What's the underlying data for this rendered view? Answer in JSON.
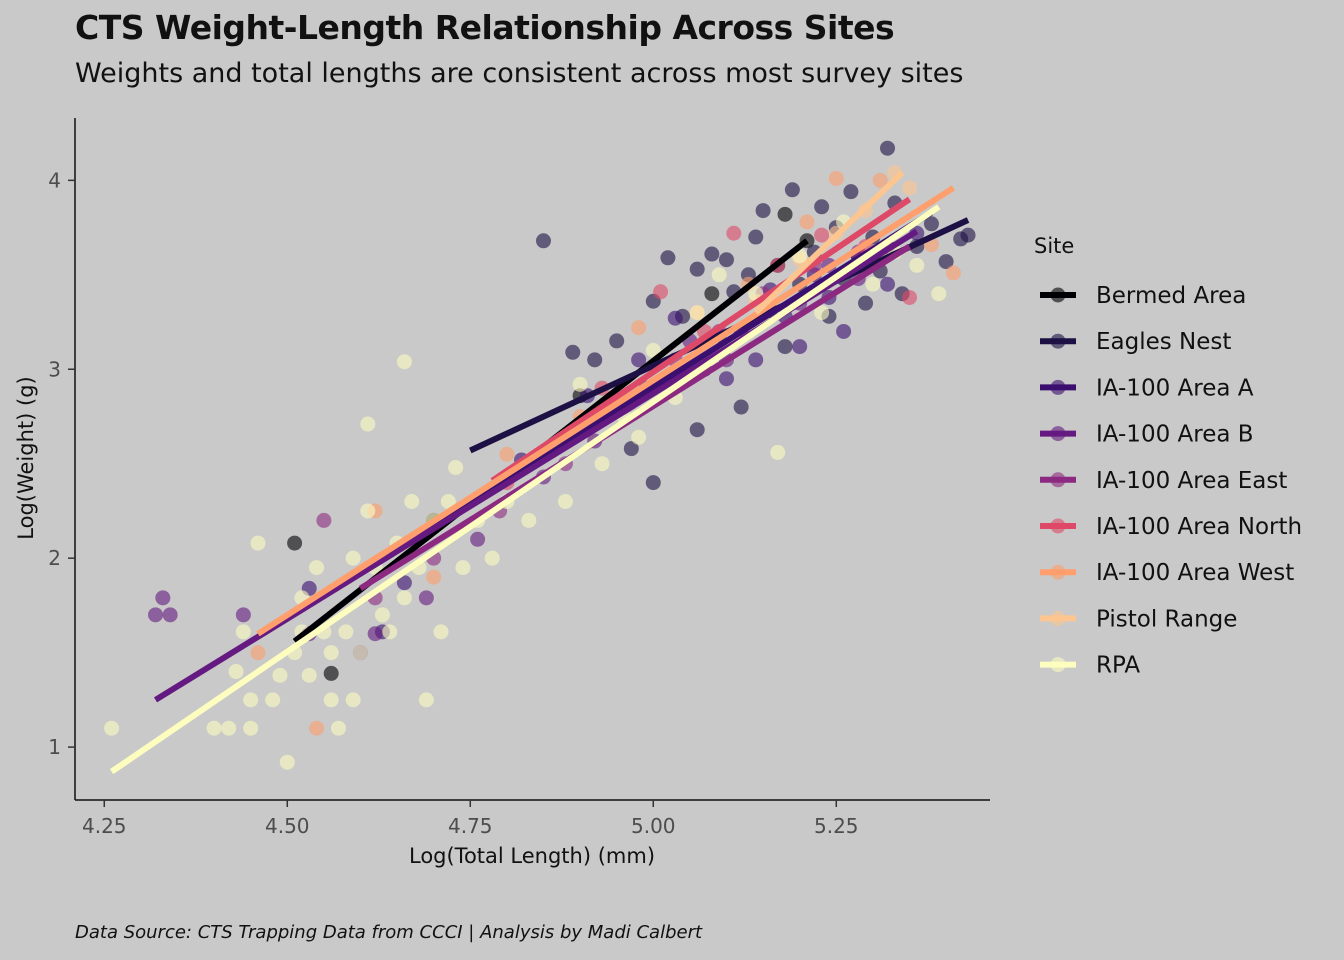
{
  "chart_data": {
    "type": "scatter",
    "title": "CTS Weight-Length Relationship Across Sites",
    "subtitle": "Weights and total lengths are consistent across most survey sites",
    "caption": "Data Source: CTS Trapping Data from CCCI | Analysis by Madi Calbert",
    "xlabel": "Log(Total Length) (mm)",
    "ylabel": "Log(Weight) (g)",
    "xlim": [
      4.21,
      5.46
    ],
    "ylim": [
      0.72,
      4.33
    ],
    "x_ticks": [
      "4.25",
      "4.50",
      "4.75",
      "5.00",
      "5.25"
    ],
    "x_tick_values": [
      4.25,
      4.5,
      4.75,
      5.0,
      5.25
    ],
    "y_ticks": [
      "1",
      "2",
      "3",
      "4"
    ],
    "y_tick_values": [
      1,
      2,
      3,
      4
    ],
    "grid": false,
    "legend": {
      "title": "Site",
      "position": "right"
    },
    "series": [
      {
        "name": "Bermed Area",
        "color": "#000004",
        "fit": [
          [
            4.51,
            1.56
          ],
          [
            5.21,
            3.68
          ]
        ],
        "points": [
          [
            4.51,
            2.08
          ],
          [
            4.56,
            1.39
          ],
          [
            4.7,
            2.2
          ],
          [
            4.9,
            2.86
          ],
          [
            5.08,
            3.4
          ],
          [
            5.18,
            3.82
          ],
          [
            5.21,
            3.68
          ]
        ]
      },
      {
        "name": "Eagles Nest",
        "color": "#1c1044",
        "fit": [
          [
            4.75,
            2.57
          ],
          [
            5.43,
            3.79
          ]
        ],
        "points": [
          [
            4.85,
            3.68
          ],
          [
            4.89,
            3.09
          ],
          [
            4.92,
            3.05
          ],
          [
            4.95,
            3.15
          ],
          [
            4.97,
            2.58
          ],
          [
            5.0,
            3.36
          ],
          [
            5.0,
            2.4
          ],
          [
            5.02,
            3.59
          ],
          [
            5.04,
            3.28
          ],
          [
            5.06,
            3.53
          ],
          [
            5.06,
            2.68
          ],
          [
            5.08,
            3.61
          ],
          [
            5.09,
            3.18
          ],
          [
            5.1,
            3.58
          ],
          [
            5.11,
            3.41
          ],
          [
            5.12,
            2.8
          ],
          [
            5.13,
            3.5
          ],
          [
            5.14,
            3.7
          ],
          [
            5.15,
            3.84
          ],
          [
            5.16,
            3.31
          ],
          [
            5.17,
            3.55
          ],
          [
            5.18,
            3.12
          ],
          [
            5.19,
            3.95
          ],
          [
            5.2,
            3.45
          ],
          [
            5.22,
            3.62
          ],
          [
            5.23,
            3.86
          ],
          [
            5.24,
            3.28
          ],
          [
            5.25,
            3.75
          ],
          [
            5.26,
            3.48
          ],
          [
            5.27,
            3.94
          ],
          [
            5.28,
            3.6
          ],
          [
            5.29,
            3.35
          ],
          [
            5.3,
            3.7
          ],
          [
            5.31,
            3.52
          ],
          [
            5.32,
            4.17
          ],
          [
            5.33,
            3.88
          ],
          [
            5.34,
            3.4
          ],
          [
            5.36,
            3.65
          ],
          [
            5.38,
            3.77
          ],
          [
            5.4,
            3.57
          ],
          [
            5.42,
            3.69
          ],
          [
            5.43,
            3.71
          ]
        ]
      },
      {
        "name": "IA-100 Area A",
        "color": "#3b0f70",
        "fit": [
          [
            4.64,
            2.03
          ],
          [
            5.38,
            3.83
          ]
        ],
        "points": [
          [
            4.53,
            1.84
          ],
          [
            4.6,
            1.5
          ],
          [
            4.63,
            1.61
          ],
          [
            4.66,
            1.87
          ],
          [
            4.82,
            2.52
          ],
          [
            4.91,
            2.86
          ],
          [
            4.98,
            3.05
          ],
          [
            5.03,
            3.27
          ],
          [
            5.07,
            3.0
          ],
          [
            5.1,
            2.95
          ],
          [
            5.12,
            3.2
          ],
          [
            5.14,
            3.05
          ],
          [
            5.16,
            3.42
          ],
          [
            5.18,
            3.28
          ],
          [
            5.2,
            3.12
          ],
          [
            5.22,
            3.5
          ],
          [
            5.24,
            3.38
          ],
          [
            5.26,
            3.2
          ],
          [
            5.28,
            3.6
          ],
          [
            5.32,
            3.45
          ],
          [
            5.36,
            3.72
          ]
        ]
      },
      {
        "name": "IA-100 Area B",
        "color": "#641a80",
        "fit": [
          [
            4.32,
            1.25
          ],
          [
            5.36,
            3.73
          ]
        ],
        "points": [
          [
            4.32,
            1.7
          ],
          [
            4.33,
            1.79
          ],
          [
            4.34,
            1.7
          ],
          [
            4.44,
            1.7
          ],
          [
            4.53,
            1.6
          ],
          [
            4.62,
            1.6
          ],
          [
            4.69,
            1.79
          ],
          [
            4.76,
            2.1
          ],
          [
            4.85,
            2.43
          ],
          [
            4.92,
            2.62
          ],
          [
            4.99,
            2.9
          ],
          [
            5.05,
            3.15
          ],
          [
            5.1,
            3.05
          ],
          [
            5.15,
            3.3
          ],
          [
            5.2,
            3.35
          ],
          [
            5.24,
            3.55
          ],
          [
            5.28,
            3.48
          ],
          [
            5.32,
            3.65
          ]
        ]
      },
      {
        "name": "IA-100 Area East",
        "color": "#8c2981",
        "fit": [
          [
            4.6,
            1.84
          ],
          [
            5.35,
            3.65
          ]
        ],
        "points": [
          [
            4.55,
            2.2
          ],
          [
            4.62,
            1.79
          ],
          [
            4.7,
            2.0
          ],
          [
            4.79,
            2.25
          ],
          [
            4.88,
            2.5
          ],
          [
            4.96,
            2.8
          ],
          [
            5.03,
            3.05
          ],
          [
            5.09,
            3.2
          ],
          [
            5.15,
            3.4
          ],
          [
            5.22,
            3.55
          ],
          [
            5.28,
            3.62
          ]
        ]
      },
      {
        "name": "IA-100 Area North",
        "color": "#de4968",
        "fit": [
          [
            4.78,
            2.41
          ],
          [
            5.35,
            3.9
          ]
        ],
        "points": [
          [
            4.8,
            2.4
          ],
          [
            4.87,
            2.62
          ],
          [
            4.93,
            2.9
          ],
          [
            5.01,
            3.41
          ],
          [
            5.07,
            3.2
          ],
          [
            5.11,
            3.72
          ],
          [
            5.17,
            3.55
          ],
          [
            5.23,
            3.71
          ],
          [
            5.29,
            3.65
          ],
          [
            5.35,
            3.38
          ]
        ]
      },
      {
        "name": "IA-100 Area West",
        "color": "#fe9f6d",
        "fit": [
          [
            4.46,
            1.6
          ],
          [
            5.41,
            3.96
          ]
        ],
        "points": [
          [
            4.46,
            1.5
          ],
          [
            4.54,
            1.1
          ],
          [
            4.62,
            2.25
          ],
          [
            4.7,
            1.9
          ],
          [
            4.8,
            2.55
          ],
          [
            4.9,
            2.75
          ],
          [
            4.98,
            3.22
          ],
          [
            5.06,
            3.3
          ],
          [
            5.13,
            3.45
          ],
          [
            5.21,
            3.78
          ],
          [
            5.25,
            4.01
          ],
          [
            5.31,
            4.0
          ],
          [
            5.38,
            3.66
          ],
          [
            5.41,
            3.51
          ]
        ]
      },
      {
        "name": "Pistol Range",
        "color": "#fdc58f",
        "fit": [
          [
            5.14,
            3.3
          ],
          [
            5.34,
            4.04
          ]
        ],
        "points": [
          [
            5.14,
            3.36
          ],
          [
            5.2,
            3.58
          ],
          [
            5.25,
            3.72
          ],
          [
            5.29,
            3.84
          ],
          [
            5.33,
            4.04
          ],
          [
            5.35,
            3.96
          ]
        ]
      },
      {
        "name": "RPA",
        "color": "#fcfdbf",
        "fit": [
          [
            4.26,
            0.87
          ],
          [
            5.39,
            3.86
          ]
        ],
        "points": [
          [
            4.26,
            1.1
          ],
          [
            4.4,
            1.1
          ],
          [
            4.42,
            1.1
          ],
          [
            4.43,
            1.4
          ],
          [
            4.44,
            1.61
          ],
          [
            4.45,
            1.25
          ],
          [
            4.45,
            1.1
          ],
          [
            4.46,
            2.08
          ],
          [
            4.48,
            1.25
          ],
          [
            4.49,
            1.38
          ],
          [
            4.5,
            0.92
          ],
          [
            4.51,
            1.5
          ],
          [
            4.52,
            1.61
          ],
          [
            4.52,
            1.79
          ],
          [
            4.53,
            1.38
          ],
          [
            4.54,
            1.95
          ],
          [
            4.55,
            1.61
          ],
          [
            4.56,
            1.25
          ],
          [
            4.56,
            1.5
          ],
          [
            4.57,
            1.1
          ],
          [
            4.58,
            1.61
          ],
          [
            4.59,
            2.0
          ],
          [
            4.59,
            1.25
          ],
          [
            4.6,
            1.5
          ],
          [
            4.61,
            2.25
          ],
          [
            4.61,
            2.71
          ],
          [
            4.62,
            1.95
          ],
          [
            4.63,
            1.7
          ],
          [
            4.64,
            1.61
          ],
          [
            4.65,
            2.08
          ],
          [
            4.66,
            3.04
          ],
          [
            4.66,
            1.79
          ],
          [
            4.67,
            2.3
          ],
          [
            4.68,
            1.95
          ],
          [
            4.69,
            1.25
          ],
          [
            4.7,
            2.2
          ],
          [
            4.71,
            1.61
          ],
          [
            4.72,
            2.3
          ],
          [
            4.73,
            2.48
          ],
          [
            4.74,
            1.95
          ],
          [
            4.76,
            2.2
          ],
          [
            4.78,
            2.0
          ],
          [
            4.8,
            2.3
          ],
          [
            4.83,
            2.2
          ],
          [
            4.85,
            2.56
          ],
          [
            4.88,
            2.3
          ],
          [
            4.9,
            2.92
          ],
          [
            4.93,
            2.5
          ],
          [
            4.96,
            2.75
          ],
          [
            4.98,
            2.64
          ],
          [
            5.0,
            3.1
          ],
          [
            5.03,
            2.85
          ],
          [
            5.06,
            3.3
          ],
          [
            5.09,
            3.5
          ],
          [
            5.11,
            3.15
          ],
          [
            5.14,
            3.4
          ],
          [
            5.17,
            2.56
          ],
          [
            5.2,
            3.6
          ],
          [
            5.23,
            3.3
          ],
          [
            5.26,
            3.78
          ],
          [
            5.3,
            3.45
          ],
          [
            5.33,
            3.62
          ],
          [
            5.36,
            3.55
          ],
          [
            5.39,
            3.4
          ]
        ]
      }
    ]
  }
}
